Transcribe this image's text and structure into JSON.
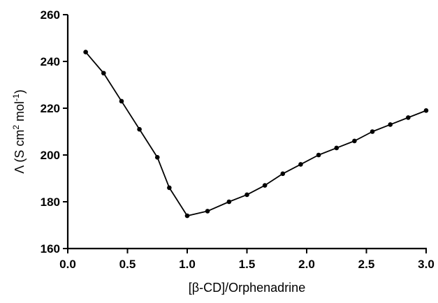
{
  "chart_data": {
    "type": "line",
    "title": "",
    "xlabel": "[β-CD]/Orphenadrine",
    "ylabel": {
      "prefix": "Λ (S cm",
      "sup1": "2",
      "middle": " mol",
      "sup2": "-1",
      "suffix": ")"
    },
    "xlim": [
      0.0,
      3.0
    ],
    "ylim": [
      160,
      260
    ],
    "x_ticks": [
      0.0,
      0.5,
      1.0,
      1.5,
      2.0,
      2.5,
      3.0
    ],
    "x_tick_labels": [
      "0.0",
      "0.5",
      "1.0",
      "1.5",
      "2.0",
      "2.5",
      "3.0"
    ],
    "y_ticks": [
      160,
      180,
      200,
      220,
      240,
      260
    ],
    "y_tick_labels": [
      "160",
      "180",
      "200",
      "220",
      "240",
      "260"
    ],
    "grid": false,
    "legend": "none",
    "series": [
      {
        "color": "#000000",
        "marker": "circle",
        "x": [
          0.15,
          0.3,
          0.45,
          0.6,
          0.75,
          0.85,
          1.0,
          1.17,
          1.35,
          1.5,
          1.65,
          1.8,
          1.95,
          2.1,
          2.25,
          2.4,
          2.55,
          2.7,
          2.85,
          3.0
        ],
        "y": [
          244,
          235,
          223,
          211,
          199,
          186,
          174,
          176,
          180,
          183,
          187,
          192,
          196,
          200,
          203,
          206,
          210,
          213,
          216,
          219
        ]
      }
    ]
  }
}
